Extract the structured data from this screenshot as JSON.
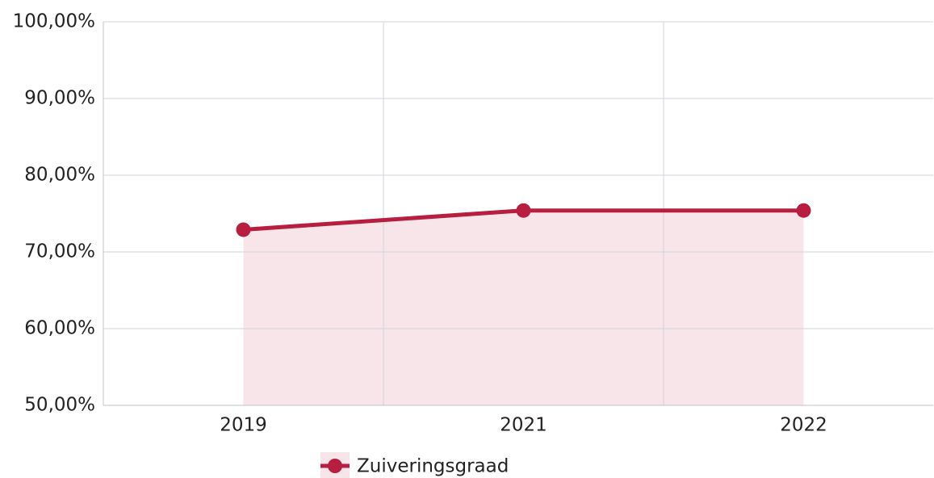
{
  "chart_data": {
    "type": "line",
    "categories": [
      "2019",
      "2021",
      "2022"
    ],
    "series": [
      {
        "name": "Zuiveringsgraad",
        "color": "#b81e3f",
        "area_color": "#f7e5ea",
        "values": [
          72.9,
          75.4,
          75.4
        ]
      }
    ],
    "ylim": [
      50,
      100
    ],
    "yticks": [
      {
        "value": 50,
        "label": "50,00%"
      },
      {
        "value": 60,
        "label": "60,00%"
      },
      {
        "value": 70,
        "label": "70,00%"
      },
      {
        "value": 80,
        "label": "80,00%"
      },
      {
        "value": 90,
        "label": "90,00%"
      },
      {
        "value": 100,
        "label": "100,00%"
      }
    ],
    "grid": true,
    "legend": "bottom"
  }
}
